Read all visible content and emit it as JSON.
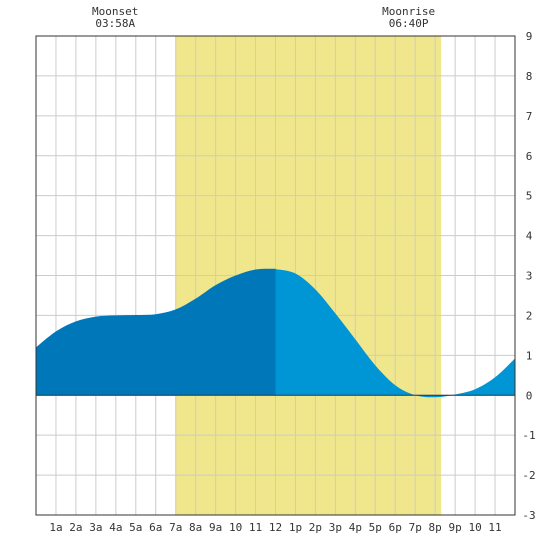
{
  "chart_data": {
    "type": "area",
    "title": "",
    "xlabel": "",
    "ylabel": "",
    "x_tick_labels": [
      "1a",
      "2a",
      "3a",
      "4a",
      "5a",
      "6a",
      "7a",
      "8a",
      "9a",
      "10",
      "11",
      "12",
      "1p",
      "2p",
      "3p",
      "4p",
      "5p",
      "6p",
      "7p",
      "8p",
      "9p",
      "10",
      "11"
    ],
    "y_ticks": [
      9,
      8,
      7,
      6,
      5,
      4,
      3,
      2,
      1,
      0,
      -1,
      -2,
      -3
    ],
    "xlim": [
      0,
      24
    ],
    "ylim": [
      -3,
      9
    ],
    "grid": true,
    "daylight": {
      "start_hour": 7.0,
      "end_hour": 20.3
    },
    "highlight_split_hour": 12.0,
    "events": [
      {
        "label": "Moonset",
        "time": "03:58A",
        "hour": 3.97
      },
      {
        "label": "Moonrise",
        "time": "06:40P",
        "hour": 18.67
      }
    ],
    "series": [
      {
        "x": [
          0,
          1,
          2,
          3,
          4,
          5,
          6,
          7,
          8,
          9,
          10,
          11,
          11.9,
          13,
          14,
          15,
          16,
          17,
          18,
          19,
          20,
          21,
          22,
          23,
          24
        ],
        "values": [
          1.2,
          1.6,
          1.85,
          1.97,
          2.0,
          2.01,
          2.03,
          2.15,
          2.42,
          2.76,
          3.0,
          3.15,
          3.17,
          3.05,
          2.65,
          2.05,
          1.4,
          0.75,
          0.25,
          0.0,
          -0.05,
          0.02,
          0.15,
          0.45,
          0.92
        ]
      }
    ],
    "colors": {
      "daylight": "#f0e68c",
      "area_dark": "#0077b8",
      "area_light": "#0096d6",
      "grid": "#cccccc",
      "axis": "#333333"
    }
  }
}
